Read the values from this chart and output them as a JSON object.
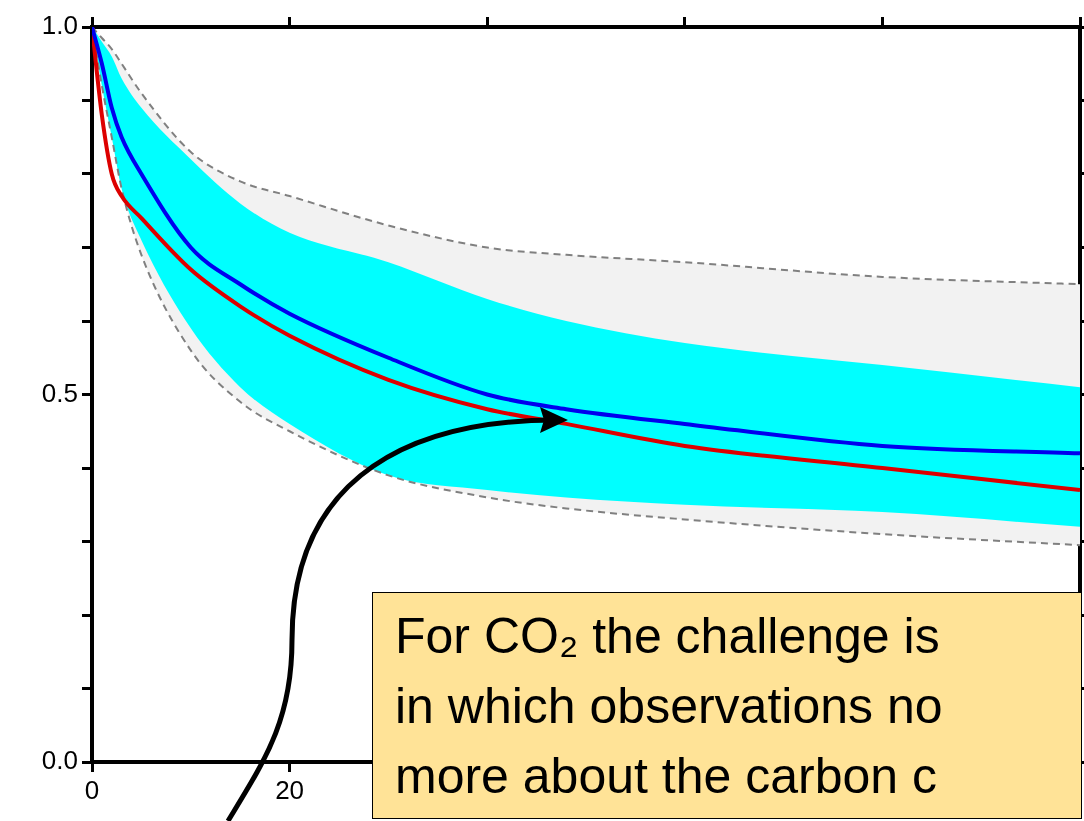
{
  "chart_data": {
    "type": "line",
    "x": [
      0,
      1,
      2,
      3,
      5,
      10,
      15,
      20,
      30,
      40,
      48,
      60,
      80,
      100
    ],
    "series": [
      {
        "color": "#808080",
        "line_style": "dashed",
        "values": [
          1.0,
          0.985,
          0.97,
          0.95,
          0.91,
          0.83,
          0.79,
          0.77,
          0.73,
          0.7,
          0.69,
          0.68,
          0.66,
          0.65
        ]
      },
      {
        "color": "#808080",
        "line_style": "dashed",
        "values": [
          1.0,
          0.92,
          0.85,
          0.78,
          0.69,
          0.56,
          0.49,
          0.45,
          0.39,
          0.36,
          0.345,
          0.33,
          0.31,
          0.295
        ]
      },
      {
        "color": "#dd0000",
        "values": [
          1.0,
          0.88,
          0.8,
          0.77,
          0.74,
          0.67,
          0.62,
          0.58,
          0.52,
          0.48,
          0.46,
          0.43,
          0.4,
          0.37
        ],
        "lower": [
          1.0,
          0.92,
          0.85,
          0.78,
          0.69,
          0.56,
          0.49,
          0.45,
          0.39,
          0.36,
          0.345,
          0.33,
          0.31,
          0.295
        ],
        "upper": [
          1.0,
          0.985,
          0.97,
          0.95,
          0.91,
          0.83,
          0.79,
          0.77,
          0.73,
          0.7,
          0.69,
          0.68,
          0.66,
          0.65
        ]
      },
      {
        "color": "#0000ee",
        "values": [
          1.0,
          0.95,
          0.89,
          0.85,
          0.8,
          0.7,
          0.65,
          0.61,
          0.55,
          0.5,
          0.48,
          0.46,
          0.43,
          0.42
        ],
        "lower": [
          1.0,
          0.92,
          0.85,
          0.78,
          0.71,
          0.59,
          0.51,
          0.46,
          0.39,
          0.37,
          0.36,
          0.35,
          0.34,
          0.32
        ],
        "upper": [
          1.0,
          0.98,
          0.96,
          0.93,
          0.89,
          0.82,
          0.76,
          0.72,
          0.68,
          0.63,
          0.6,
          0.57,
          0.54,
          0.51
        ]
      }
    ],
    "xlim": [
      0,
      100
    ],
    "xticks": [
      0,
      20,
      {
        "value": 40,
        "label": null
      },
      {
        "value": 60,
        "label": null
      },
      {
        "value": 80,
        "label": null
      },
      {
        "value": 100,
        "label": null
      }
    ],
    "ylim": [
      0,
      1
    ],
    "yticks": [
      {
        "value": 0,
        "label": "0.0"
      },
      {
        "value": 0.1,
        "label": null
      },
      {
        "value": 0.2,
        "label": null
      },
      {
        "value": 0.3,
        "label": null
      },
      {
        "value": 0.4,
        "label": null
      },
      {
        "value": 0.5,
        "label": "0.5"
      },
      {
        "value": 0.6,
        "label": null
      },
      {
        "value": 0.7,
        "label": null
      },
      {
        "value": 0.8,
        "label": null
      },
      {
        "value": 0.9,
        "label": null
      },
      {
        "value": 1,
        "label": "1.0"
      }
    ],
    "annotations": [
      "For CO₂ the challenge is",
      "in which observations no",
      "more about the carbon c"
    ],
    "legend": false,
    "marker": "none"
  }
}
